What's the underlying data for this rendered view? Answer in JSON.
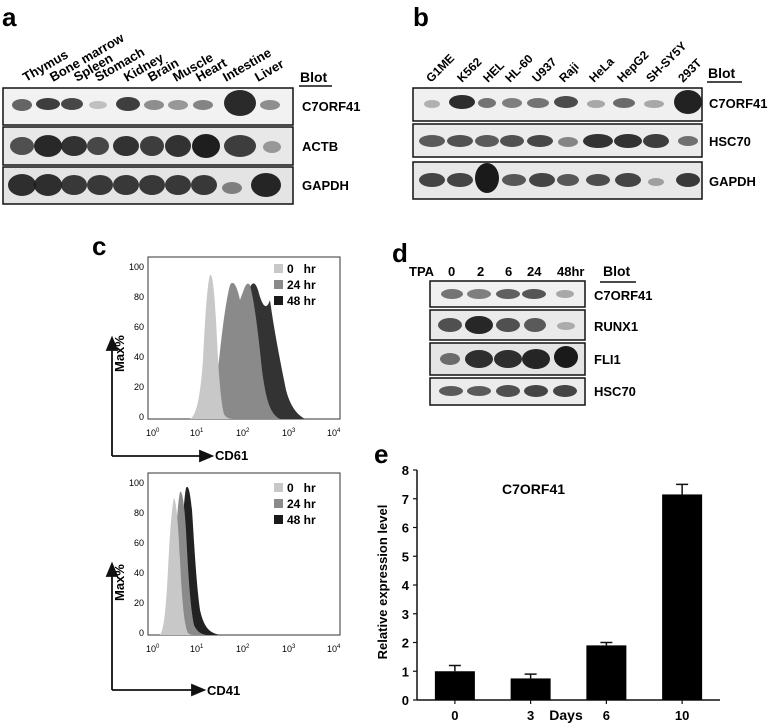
{
  "panels": {
    "a": {
      "letter": "a",
      "lanes": [
        "Thymus",
        "Bone marrow",
        "Spleen",
        "Stomach",
        "Kidney",
        "Brain",
        "Muscle",
        "Heart",
        "Intestine",
        "Liver"
      ],
      "blot_header": "Blot",
      "rows": [
        "C7ORF41",
        "ACTB",
        "GAPDH"
      ]
    },
    "b": {
      "letter": "b",
      "lanes": [
        "G1ME",
        "K562",
        "HEL",
        "HL-60",
        "U937",
        "Raji",
        "HeLa",
        "HepG2",
        "SH-SY5Y",
        "293T"
      ],
      "blot_header": "Blot",
      "rows": [
        "C7ORF41",
        "HSC70",
        "GAPDH"
      ]
    },
    "c": {
      "letter": "c",
      "plots": [
        {
          "ylabel": "Max%",
          "xlabel": "CD61",
          "yticks": [
            "100",
            "80",
            "60",
            "40",
            "20",
            "0"
          ],
          "xticks": [
            "10",
            "10",
            "10",
            "10",
            "10"
          ],
          "xtick_exps": [
            "0",
            "1",
            "2",
            "3",
            "4"
          ],
          "legend": [
            "0   hr",
            "24 hr",
            "48 hr"
          ]
        },
        {
          "ylabel": "Max%",
          "xlabel": "CD41",
          "yticks": [
            "100",
            "80",
            "60",
            "40",
            "20",
            "0"
          ],
          "xticks": [
            "10",
            "10",
            "10",
            "10",
            "10"
          ],
          "xtick_exps": [
            "0",
            "1",
            "2",
            "3",
            "4"
          ],
          "legend": [
            "0   hr",
            "24 hr",
            "48 hr"
          ]
        }
      ],
      "legend_colors": [
        "#c8c8c8",
        "#8a8a8a",
        "#1a1a1a"
      ]
    },
    "d": {
      "letter": "d",
      "treatment": "TPA",
      "timepoints": [
        "0",
        "2",
        "6",
        "24",
        "48hr"
      ],
      "blot_header": "Blot",
      "rows": [
        "C7ORF41",
        "RUNX1",
        "FLI1",
        "HSC70"
      ]
    },
    "e": {
      "letter": "e"
    }
  },
  "chart_data": {
    "type": "bar",
    "title": "C7ORF41",
    "xlabel": "Days",
    "ylabel": "Relative expression level",
    "categories": [
      "0",
      "3",
      "6",
      "10"
    ],
    "values": [
      1.0,
      0.75,
      1.9,
      7.15
    ],
    "errors": [
      0.2,
      0.15,
      0.1,
      0.35
    ],
    "ylim": [
      0,
      8
    ],
    "yticks": [
      "0",
      "1",
      "2",
      "3",
      "4",
      "5",
      "6",
      "7",
      "8"
    ],
    "bar_color": "#000000"
  }
}
